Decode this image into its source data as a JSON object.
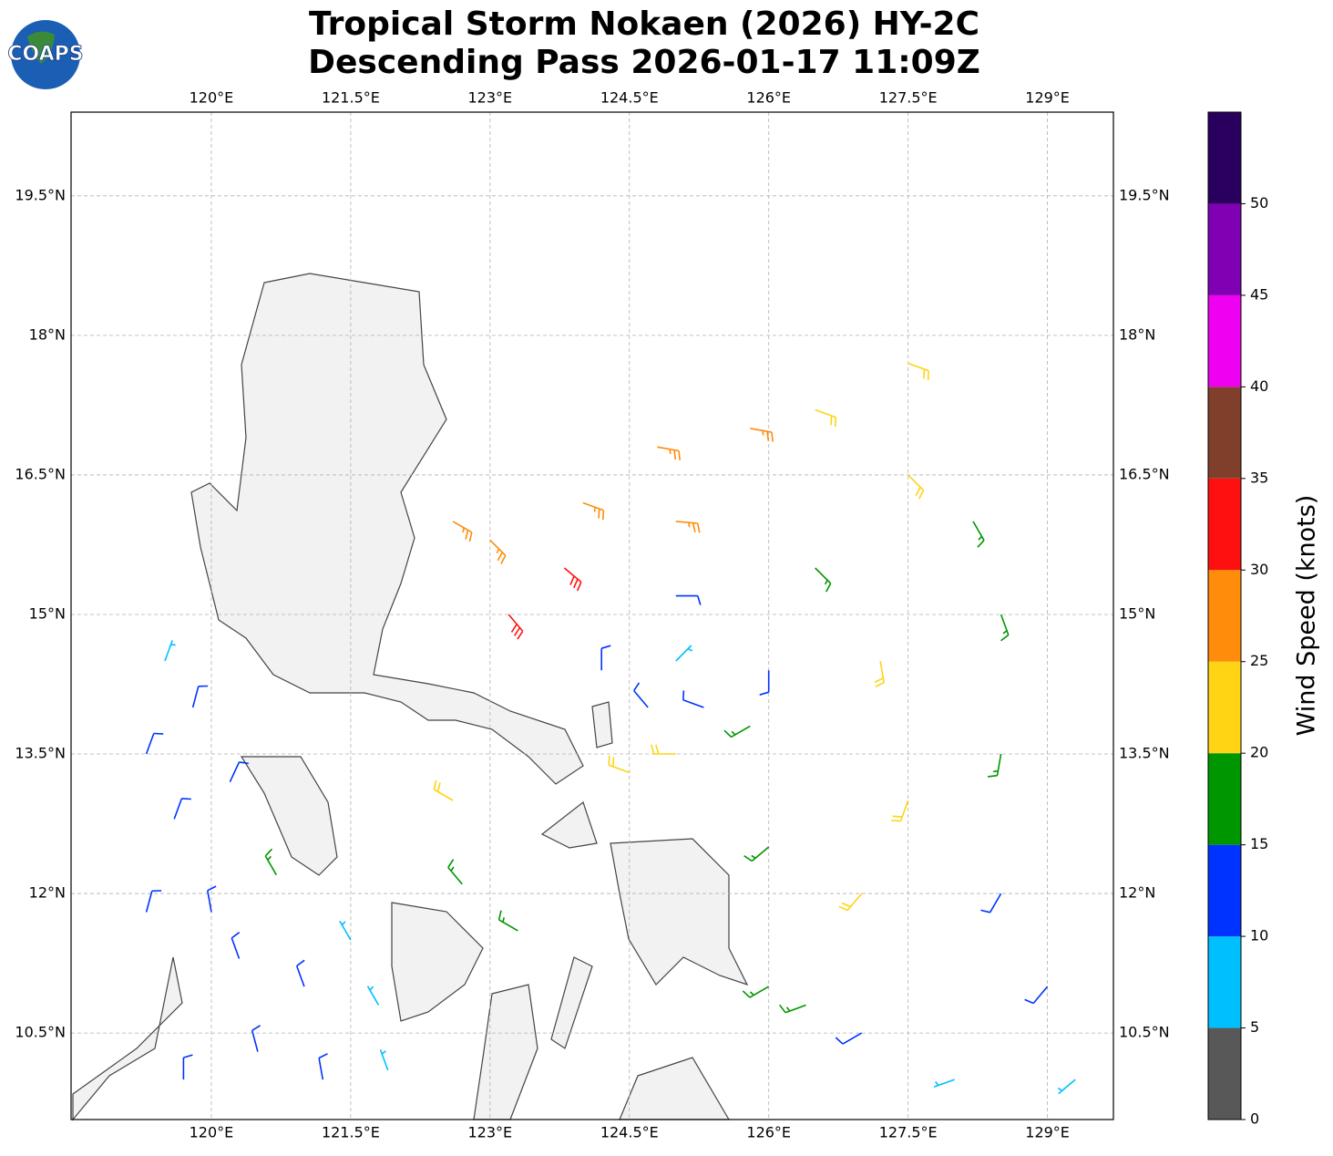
{
  "map": {
    "logo": "COAPS",
    "title": [
      "Tropical Storm Nokaen (2026) HY-2C",
      "Descending Pass 2026-01-17 11:09Z"
    ],
    "lonlim": [
      118.49,
      129.71
    ],
    "latlim": [
      9.57,
      20.4
    ],
    "lonticks": [
      {
        "value": 120,
        "label": "120°E"
      },
      {
        "value": 121.5,
        "label": "121.5°E"
      },
      {
        "value": 123,
        "label": "123°E"
      },
      {
        "value": 124.5,
        "label": "124.5°E"
      },
      {
        "value": 126,
        "label": "126°E"
      },
      {
        "value": 127.5,
        "label": "127.5°E"
      },
      {
        "value": 129,
        "label": "129°E"
      }
    ],
    "latticks": [
      {
        "value": 10.5,
        "label": "10.5°N"
      },
      {
        "value": 12,
        "label": "12°N"
      },
      {
        "value": 13.5,
        "label": "13.5°N"
      },
      {
        "value": 15,
        "label": "15°N"
      },
      {
        "value": 16.5,
        "label": "16.5°N"
      },
      {
        "value": 18,
        "label": "18°N"
      },
      {
        "value": 19.5,
        "label": "19.5°N"
      }
    ],
    "grid": true,
    "colorbar": {
      "label": "Wind Speed (knots)",
      "bounds": [
        0,
        5,
        10,
        15,
        20,
        25,
        30,
        35,
        40,
        45,
        50,
        55
      ],
      "colors": [
        "#585858",
        "#00bfff",
        "#0033ff",
        "#009600",
        "#ffd414",
        "#ff8c0a",
        "#ff1010",
        "#7f3f2a",
        "#f000f0",
        "#8000b4",
        "#2a005e"
      ],
      "ticks": [
        0,
        5,
        10,
        15,
        20,
        25,
        30,
        35,
        40,
        45,
        50
      ]
    },
    "barbs": [
      [
        125.0,
        15.2,
        12,
        90
      ],
      [
        125.0,
        16.0,
        27,
        95
      ],
      [
        124.0,
        16.2,
        28,
        110
      ],
      [
        123.0,
        15.8,
        28,
        135
      ],
      [
        123.2,
        15.0,
        32,
        140
      ],
      [
        123.8,
        15.5,
        33,
        130
      ],
      [
        122.6,
        16.0,
        27,
        120
      ],
      [
        124.2,
        14.4,
        12,
        0
      ],
      [
        125.0,
        13.5,
        22,
        270
      ],
      [
        126.0,
        14.4,
        14,
        180
      ],
      [
        126.5,
        15.5,
        18,
        135
      ],
      [
        127.5,
        16.5,
        20,
        135
      ],
      [
        126.5,
        17.2,
        23,
        110
      ],
      [
        127.5,
        17.7,
        22,
        110
      ],
      [
        128.2,
        16.0,
        17,
        150
      ],
      [
        128.5,
        15.0,
        18,
        160
      ],
      [
        127.2,
        14.5,
        22,
        170
      ],
      [
        127.5,
        13.0,
        22,
        200
      ],
      [
        128.5,
        13.5,
        17,
        190
      ],
      [
        126.0,
        12.5,
        17,
        230
      ],
      [
        127.0,
        12.0,
        22,
        220
      ],
      [
        126.0,
        11.0,
        17,
        240
      ],
      [
        127.0,
        10.5,
        13,
        240
      ],
      [
        128.0,
        10.0,
        8,
        250
      ],
      [
        129.0,
        11.0,
        12,
        220
      ],
      [
        129.3,
        10.0,
        7,
        230
      ],
      [
        125.8,
        13.8,
        18,
        240
      ],
      [
        124.5,
        13.3,
        24,
        290
      ],
      [
        126.4,
        10.8,
        16,
        250
      ],
      [
        128.5,
        12.0,
        13,
        210
      ],
      [
        124.8,
        16.8,
        27,
        100
      ],
      [
        125.8,
        17.0,
        26,
        100
      ],
      [
        124.7,
        14.0,
        12,
        320
      ],
      [
        125.3,
        14.0,
        13,
        290
      ],
      [
        125.0,
        14.5,
        7,
        45
      ],
      [
        119.5,
        14.5,
        8,
        20
      ],
      [
        119.8,
        14.0,
        12,
        15
      ],
      [
        119.3,
        13.5,
        13,
        20
      ],
      [
        119.6,
        12.8,
        12,
        20
      ],
      [
        120.2,
        13.2,
        13,
        25
      ],
      [
        119.3,
        11.8,
        12,
        15
      ],
      [
        120.3,
        11.3,
        12,
        340
      ],
      [
        121.0,
        11.0,
        13,
        340
      ],
      [
        121.5,
        11.5,
        8,
        330
      ],
      [
        121.8,
        10.8,
        9,
        330
      ],
      [
        120.5,
        10.3,
        13,
        345
      ],
      [
        121.2,
        10.0,
        12,
        350
      ],
      [
        121.9,
        10.1,
        8,
        340
      ],
      [
        119.7,
        10.0,
        12,
        0
      ],
      [
        120.0,
        11.8,
        14,
        350
      ],
      [
        120.7,
        12.2,
        15,
        330
      ],
      [
        122.6,
        13.0,
        22,
        300
      ],
      [
        122.7,
        12.1,
        17,
        320
      ],
      [
        123.3,
        11.6,
        17,
        300
      ]
    ]
  }
}
